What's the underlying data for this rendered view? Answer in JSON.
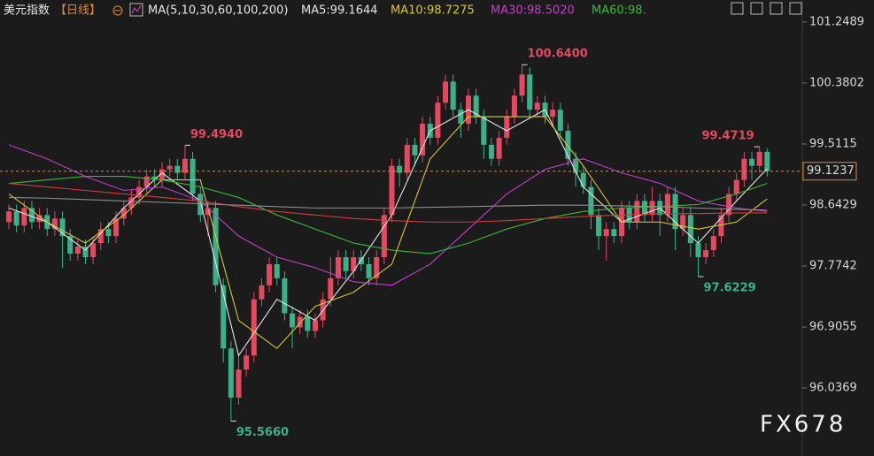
{
  "chart_data": {
    "type": "candlestick",
    "title": "美元指数",
    "period": "【日线】",
    "indicator": "MA(5,10,30,60,100,200)",
    "watermark": "FX678",
    "up_color": "#e5485f",
    "down_color": "#3bb18a",
    "ylim": [
      95.27,
      101.31
    ],
    "yticks": [
      101.2489,
      100.3802,
      99.5115,
      98.6429,
      97.7742,
      96.9055,
      96.0369
    ],
    "grid": false,
    "last_price": 99.1237,
    "last_color": "#e08a2e",
    "open": [
      98.4,
      98.55,
      98.35,
      98.6,
      98.4,
      98.5,
      98.3,
      98.45,
      98.2,
      97.95,
      98.05,
      97.9,
      98.1,
      98.3,
      98.2,
      98.45,
      98.6,
      98.75,
      98.9,
      99.05,
      99.0,
      99.15,
      99.2,
      99.1,
      99.3,
      98.8,
      98.5,
      98.6,
      97.5,
      96.6,
      95.9,
      96.3,
      96.5,
      97.3,
      97.5,
      97.8,
      97.6,
      97.1,
      96.9,
      97.05,
      96.85,
      97.0,
      97.3,
      97.6,
      97.9,
      97.7,
      97.9,
      97.8,
      97.6,
      97.9,
      98.5,
      99.2,
      99.1,
      99.5,
      99.35,
      99.8,
      99.6,
      100.1,
      100.4,
      100.0,
      99.8,
      100.2,
      99.9,
      99.5,
      99.3,
      99.6,
      99.9,
      100.2,
      100.5,
      100.0,
      100.1,
      99.9,
      100.0,
      99.7,
      99.3,
      99.1,
      98.9,
      98.5,
      98.2,
      98.3,
      98.2,
      98.6,
      98.4,
      98.7,
      98.5,
      98.7,
      98.5,
      98.8,
      98.3,
      98.5,
      98.1,
      97.9,
      98.0,
      98.2,
      98.5,
      98.8,
      99.0,
      99.3,
      99.2,
      99.4
    ],
    "high": [
      98.65,
      98.65,
      98.7,
      98.7,
      98.6,
      98.6,
      98.55,
      98.55,
      98.3,
      98.15,
      98.15,
      98.2,
      98.4,
      98.4,
      98.55,
      98.7,
      98.85,
      99.0,
      99.15,
      99.15,
      99.25,
      99.3,
      99.3,
      99.494,
      99.4,
      98.9,
      98.7,
      98.7,
      97.6,
      96.7,
      96.5,
      96.6,
      97.4,
      97.6,
      97.9,
      97.9,
      97.7,
      97.2,
      97.15,
      97.15,
      97.1,
      97.4,
      97.9,
      98.0,
      98.0,
      98.0,
      98.0,
      97.9,
      98.0,
      98.6,
      99.3,
      99.3,
      99.6,
      99.6,
      99.9,
      99.9,
      100.2,
      100.5,
      100.5,
      100.1,
      100.3,
      100.3,
      100.0,
      99.6,
      99.7,
      100.0,
      100.3,
      100.64,
      100.6,
      100.2,
      100.2,
      100.1,
      100.1,
      99.8,
      99.4,
      99.2,
      99.0,
      98.6,
      98.4,
      98.4,
      98.7,
      98.7,
      98.8,
      98.8,
      98.9,
      98.8,
      98.9,
      98.9,
      98.6,
      98.6,
      98.2,
      98.1,
      98.3,
      98.6,
      98.9,
      99.1,
      99.4,
      99.4,
      99.4719,
      99.45
    ],
    "low": [
      98.3,
      98.25,
      98.25,
      98.3,
      98.3,
      98.2,
      98.2,
      97.75,
      97.85,
      97.85,
      97.8,
      97.8,
      98.0,
      98.1,
      98.1,
      98.35,
      98.5,
      98.65,
      98.8,
      98.9,
      98.9,
      99.05,
      99.0,
      99.0,
      98.7,
      98.4,
      98.2,
      97.4,
      96.4,
      95.566,
      95.8,
      96.2,
      96.4,
      97.2,
      97.4,
      97.5,
      97.0,
      96.6,
      96.8,
      96.75,
      96.75,
      96.9,
      97.2,
      97.5,
      97.6,
      97.6,
      97.7,
      97.5,
      97.5,
      97.8,
      98.4,
      98.9,
      99.0,
      99.2,
      99.25,
      99.5,
      99.5,
      100.0,
      99.9,
      99.6,
      99.7,
      99.8,
      99.3,
      99.2,
      99.2,
      99.5,
      99.8,
      100.1,
      99.9,
      99.9,
      99.8,
      99.8,
      99.6,
      99.2,
      98.9,
      98.8,
      98.3,
      98.0,
      97.85,
      98.1,
      98.1,
      98.3,
      98.3,
      98.4,
      98.4,
      98.2,
      98.4,
      98.0,
      98.2,
      97.9,
      97.6229,
      97.8,
      97.9,
      98.1,
      98.4,
      98.7,
      98.9,
      99.0,
      99.1,
      99.05
    ],
    "close": [
      98.55,
      98.35,
      98.6,
      98.4,
      98.5,
      98.3,
      98.45,
      98.2,
      97.95,
      98.05,
      97.9,
      98.1,
      98.3,
      98.2,
      98.45,
      98.6,
      98.75,
      98.9,
      99.05,
      99.0,
      99.15,
      99.2,
      99.1,
      99.3,
      98.8,
      98.5,
      98.6,
      97.5,
      96.6,
      95.9,
      96.3,
      96.5,
      97.3,
      97.5,
      97.8,
      97.6,
      97.1,
      96.9,
      97.05,
      96.85,
      97.0,
      97.3,
      97.6,
      97.9,
      97.7,
      97.9,
      97.8,
      97.6,
      97.9,
      98.5,
      99.2,
      99.1,
      99.5,
      99.35,
      99.8,
      99.6,
      100.1,
      100.4,
      100.0,
      99.8,
      100.2,
      99.9,
      99.5,
      99.3,
      99.6,
      99.9,
      100.2,
      100.5,
      100.0,
      100.1,
      99.9,
      100.0,
      99.7,
      99.3,
      99.1,
      98.9,
      98.5,
      98.2,
      98.3,
      98.2,
      98.6,
      98.4,
      98.7,
      98.5,
      98.7,
      98.5,
      98.8,
      98.3,
      98.5,
      98.1,
      97.9,
      98.0,
      98.2,
      98.5,
      98.8,
      99.0,
      99.3,
      99.2,
      99.4,
      99.1237
    ],
    "ma_x": [
      0,
      5,
      10,
      15,
      20,
      25,
      30,
      35,
      40,
      45,
      50,
      55,
      60,
      65,
      70,
      75,
      80,
      85,
      90,
      95,
      99
    ],
    "series": [
      {
        "name": "MA5:99.1644",
        "color": "#e6e6e6",
        "values": [
          98.6,
          98.4,
          98.0,
          98.6,
          99.1,
          98.7,
          96.5,
          97.3,
          97.0,
          97.7,
          98.5,
          99.7,
          100.0,
          99.7,
          100.0,
          98.9,
          98.4,
          98.6,
          98.1,
          98.7,
          99.16
        ]
      },
      {
        "name": "MA10:98.7275",
        "color": "#d8c53a",
        "values": [
          98.8,
          98.4,
          98.1,
          98.5,
          99.0,
          99.0,
          97.0,
          96.6,
          97.2,
          97.4,
          97.8,
          99.3,
          99.9,
          99.9,
          99.9,
          99.2,
          98.4,
          98.4,
          98.3,
          98.4,
          98.73
        ]
      },
      {
        "name": "MA30:98.5020",
        "color": "#c13fc8",
        "values": [
          99.5,
          99.3,
          99.05,
          98.85,
          98.9,
          98.7,
          98.2,
          97.9,
          97.75,
          97.55,
          97.5,
          97.8,
          98.3,
          98.8,
          99.15,
          99.3,
          99.1,
          98.95,
          98.7,
          98.6,
          98.55
        ]
      },
      {
        "name": "MA60:98.",
        "color": "#39b83a",
        "values": [
          98.95,
          99.0,
          99.05,
          99.05,
          99.0,
          98.9,
          98.75,
          98.5,
          98.3,
          98.1,
          98.0,
          97.95,
          98.1,
          98.3,
          98.45,
          98.55,
          98.6,
          98.62,
          98.65,
          98.8,
          98.95
        ]
      },
      {
        "color": "#d23c3c",
        "values": [
          98.95,
          98.9,
          98.85,
          98.8,
          98.75,
          98.7,
          98.62,
          98.55,
          98.5,
          98.45,
          98.42,
          98.4,
          98.4,
          98.42,
          98.45,
          98.48,
          98.5,
          98.52,
          98.52,
          98.53,
          98.53
        ]
      },
      {
        "color": "#8e8e8e",
        "values": [
          98.75,
          98.74,
          98.72,
          98.7,
          98.68,
          98.66,
          98.64,
          98.62,
          98.6,
          98.6,
          98.6,
          98.61,
          98.62,
          98.63,
          98.64,
          98.64,
          98.63,
          98.62,
          98.6,
          98.58,
          98.57
        ]
      }
    ],
    "annotations": [
      {
        "at": "high",
        "index": 23,
        "side": "right",
        "label": "99.4940",
        "color": "#e5485f"
      },
      {
        "at": "high",
        "index": 67,
        "side": "right",
        "label": "100.6400",
        "color": "#e5485f"
      },
      {
        "at": "high",
        "index": 98,
        "side": "left",
        "label": "99.4719",
        "color": "#e5485f"
      },
      {
        "at": "low",
        "index": 29,
        "side": "right",
        "label": "95.5660",
        "color": "#3bb18a"
      },
      {
        "at": "low",
        "index": 90,
        "side": "right",
        "label": "97.6229",
        "color": "#3bb18a"
      }
    ]
  }
}
